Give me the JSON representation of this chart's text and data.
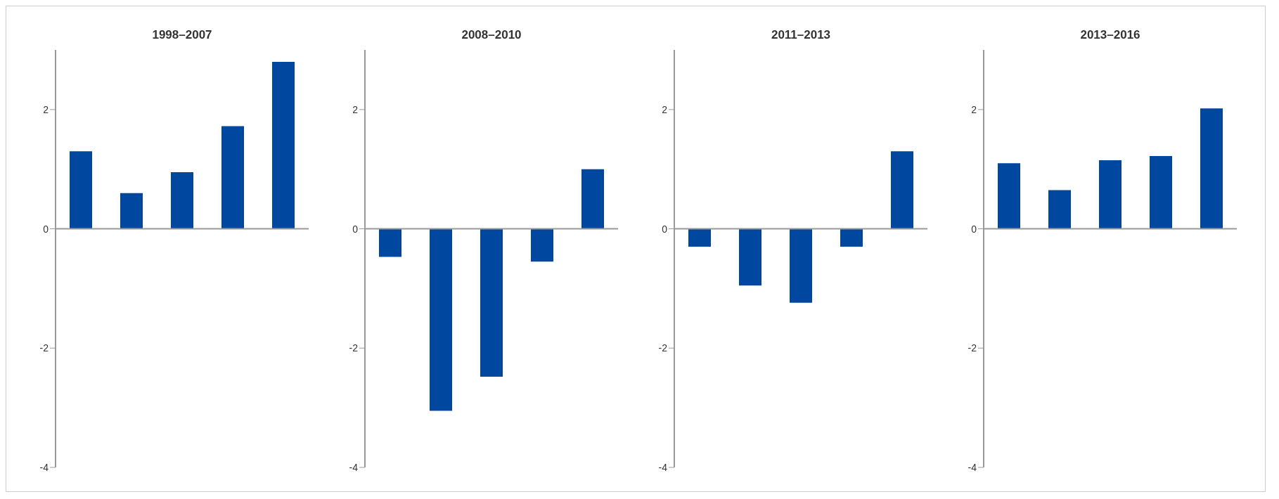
{
  "chart_data": [
    {
      "type": "bar",
      "title": "1998–2007",
      "categories": [
        null,
        null,
        null,
        null,
        null
      ],
      "values": [
        1.3,
        0.6,
        0.95,
        1.72,
        2.8
      ],
      "color": "#0047a0",
      "ylim": [
        -4,
        3
      ],
      "yticks": [
        -4,
        -2,
        0,
        2
      ]
    },
    {
      "type": "bar",
      "title": "2008–2010",
      "categories": [
        null,
        null,
        null,
        null,
        null
      ],
      "values": [
        -0.47,
        -3.05,
        -2.48,
        -0.55,
        1.0
      ],
      "color": "#0047a0",
      "ylim": [
        -4,
        3
      ],
      "yticks": [
        -4,
        -2,
        0,
        2
      ]
    },
    {
      "type": "bar",
      "title": "2011–2013",
      "categories": [
        null,
        null,
        null,
        null,
        null
      ],
      "values": [
        -0.3,
        -0.95,
        -1.24,
        -0.3,
        1.3
      ],
      "color": "#0047a0",
      "ylim": [
        -4,
        3
      ],
      "yticks": [
        -4,
        -2,
        0,
        2
      ]
    },
    {
      "type": "bar",
      "title": "2013–2016",
      "categories": [
        null,
        null,
        null,
        null,
        null
      ],
      "values": [
        1.1,
        0.65,
        1.15,
        1.22,
        2.02
      ],
      "color": "#0047a0",
      "ylim": [
        -4,
        3
      ],
      "yticks": [
        -4,
        -2,
        0,
        2
      ]
    }
  ]
}
